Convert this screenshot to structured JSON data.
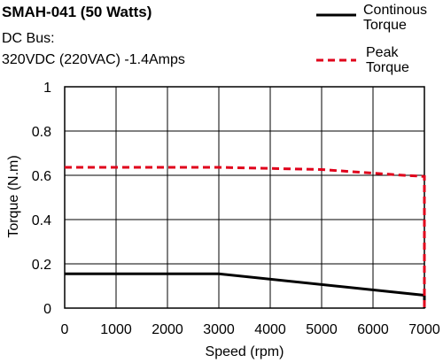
{
  "chart_data": {
    "type": "line",
    "title": "SMAH-041 (50 Watts)",
    "subtitle_lines": [
      "DC Bus:",
      "320VDC (220VAC)  -1.4Amps"
    ],
    "xlabel": "Speed (rpm)",
    "ylabel": "Torque (N.m)",
    "xlim": [
      0,
      7000
    ],
    "ylim": [
      0,
      1
    ],
    "x_ticks": [
      0,
      1000,
      2000,
      3000,
      4000,
      5000,
      6000,
      7000
    ],
    "x_tick_labels": [
      "0",
      "1000",
      "2000",
      "3000",
      "4000",
      "5000",
      "6000",
      "7000"
    ],
    "y_ticks": [
      0,
      0.2,
      0.4,
      0.6,
      0.8,
      1
    ],
    "y_tick_labels": [
      "0",
      "0.2",
      "0.4",
      "0.6",
      "0.8",
      "1"
    ],
    "grid": true,
    "legend_position": "top-right",
    "series": [
      {
        "name_lines": [
          "Continous",
          "Torque"
        ],
        "color": "#000000",
        "style": "solid",
        "points": [
          [
            0,
            0.155
          ],
          [
            3000,
            0.155
          ],
          [
            7000,
            0.058
          ],
          [
            7000,
            0
          ]
        ]
      },
      {
        "name_lines": [
          "Peak",
          "Torque"
        ],
        "color": "#e0001b",
        "style": "dashed",
        "points": [
          [
            0,
            0.636
          ],
          [
            3000,
            0.636
          ],
          [
            5000,
            0.626
          ],
          [
            6600,
            0.6
          ],
          [
            7000,
            0.595
          ],
          [
            7000,
            0
          ]
        ]
      }
    ]
  }
}
